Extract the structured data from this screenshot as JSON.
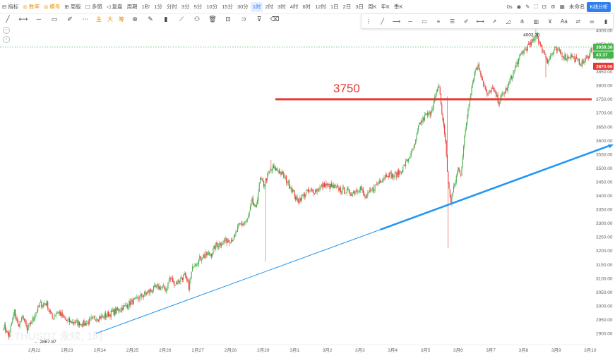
{
  "toolbar": {
    "left_items": [
      {
        "label": "指标",
        "icon": "indicator-icon"
      },
      {
        "label": "数率",
        "icon": "rate-icon",
        "accent": true
      },
      {
        "label": "模号",
        "icon": "signal-icon",
        "accent": true
      },
      {
        "label": "周版",
        "icon": "layout-icon"
      },
      {
        "label": "多窗",
        "icon": "multi-window-icon"
      },
      {
        "label": "复盘",
        "icon": "replay-icon"
      },
      {
        "label": "周期",
        "icon": "period-icon"
      }
    ],
    "intervals": [
      "1秒",
      "1分",
      "分时",
      "3分",
      "5分",
      "10分",
      "15分",
      "30分",
      "1时",
      "2时",
      "3时",
      "4时",
      "6时",
      "12时",
      "1日",
      "2日",
      "3日",
      "周K",
      "年K",
      "季K"
    ],
    "active_interval": "1时",
    "right_items": [
      "0s",
      "未命名"
    ],
    "chart_button": "K线分析"
  },
  "drawing_toolbar": {
    "label_items": [
      "主",
      "大",
      "筹"
    ]
  },
  "chart_data": {
    "type": "candlestick",
    "symbol_watermark": "ETHUSDT 永续, 1时",
    "x_ticks": [
      "2月22",
      "2月23",
      "2月24",
      "2月25",
      "2月26",
      "2月27",
      "2月28",
      "2月29",
      "3月1",
      "3月2",
      "3月3",
      "3月4",
      "3月5",
      "3月6",
      "3月7",
      "3月8",
      "3月9",
      "3月10"
    ],
    "y_ticks": [
      2900,
      2950,
      3000,
      3050,
      3100,
      3150,
      3200,
      3250,
      3300,
      3350,
      3400,
      3450,
      3500,
      3550,
      3600,
      3650,
      3700,
      3750,
      3800,
      3850,
      3900,
      3950,
      4000
    ],
    "ylim": [
      2875,
      4008
    ],
    "up_color": "#4caf50",
    "down_color": "#e53935",
    "anchors": [
      [
        0,
        2930
      ],
      [
        6,
        2890
      ],
      [
        12,
        2980
      ],
      [
        16,
        2930
      ],
      [
        22,
        2960
      ],
      [
        26,
        2910
      ],
      [
        32,
        2950
      ],
      [
        40,
        3005
      ],
      [
        48,
        3010
      ],
      [
        54,
        2955
      ],
      [
        60,
        2980
      ],
      [
        70,
        2945
      ],
      [
        80,
        2940
      ],
      [
        90,
        2935
      ],
      [
        100,
        2955
      ],
      [
        110,
        2960
      ],
      [
        120,
        2975
      ],
      [
        130,
        2990
      ],
      [
        140,
        3010
      ],
      [
        150,
        3030
      ],
      [
        160,
        3050
      ],
      [
        170,
        3070
      ],
      [
        180,
        3060
      ],
      [
        184,
        3100
      ],
      [
        190,
        3080
      ],
      [
        200,
        3110
      ],
      [
        205,
        3070
      ],
      [
        210,
        3150
      ],
      [
        220,
        3180
      ],
      [
        230,
        3190
      ],
      [
        235,
        3220
      ],
      [
        245,
        3235
      ],
      [
        255,
        3245
      ],
      [
        260,
        3290
      ],
      [
        270,
        3310
      ],
      [
        275,
        3380
      ],
      [
        279,
        3350
      ],
      [
        284,
        3460
      ],
      [
        288,
        3440
      ],
      [
        293,
        3480
      ],
      [
        298,
        3500
      ],
      [
        305,
        3490
      ],
      [
        310,
        3470
      ],
      [
        318,
        3430
      ],
      [
        325,
        3380
      ],
      [
        335,
        3410
      ],
      [
        345,
        3420
      ],
      [
        355,
        3440
      ],
      [
        365,
        3430
      ],
      [
        375,
        3420
      ],
      [
        385,
        3410
      ],
      [
        395,
        3430
      ],
      [
        400,
        3390
      ],
      [
        405,
        3410
      ],
      [
        415,
        3450
      ],
      [
        425,
        3480
      ],
      [
        432,
        3470
      ],
      [
        440,
        3490
      ],
      [
        447,
        3530
      ],
      [
        455,
        3580
      ],
      [
        460,
        3660
      ],
      [
        467,
        3690
      ],
      [
        472,
        3700
      ],
      [
        478,
        3760
      ],
      [
        482,
        3800
      ],
      [
        485,
        3700
      ],
      [
        489,
        3600
      ],
      [
        492,
        3440
      ],
      [
        495,
        3380
      ],
      [
        499,
        3440
      ],
      [
        503,
        3500
      ],
      [
        506,
        3480
      ],
      [
        510,
        3610
      ],
      [
        514,
        3720
      ],
      [
        518,
        3800
      ],
      [
        522,
        3860
      ],
      [
        526,
        3870
      ],
      [
        530,
        3820
      ],
      [
        535,
        3760
      ],
      [
        540,
        3790
      ],
      [
        544,
        3770
      ],
      [
        548,
        3740
      ],
      [
        553,
        3770
      ],
      [
        557,
        3790
      ],
      [
        562,
        3830
      ],
      [
        568,
        3880
      ],
      [
        574,
        3920
      ],
      [
        580,
        3940
      ],
      [
        586,
        3960
      ],
      [
        590,
        3990
      ],
      [
        594,
        3940
      ],
      [
        598,
        3920
      ],
      [
        602,
        3890
      ],
      [
        606,
        3910
      ],
      [
        610,
        3930
      ],
      [
        616,
        3920
      ],
      [
        622,
        3900
      ],
      [
        628,
        3910
      ],
      [
        634,
        3890
      ],
      [
        640,
        3880
      ],
      [
        646,
        3900
      ],
      [
        650,
        3930
      ]
    ],
    "wicks": [
      {
        "i": 290,
        "low": 3160
      },
      {
        "i": 296,
        "high": 3530
      },
      {
        "i": 492,
        "low": 3210
      },
      {
        "i": 491,
        "high": 3760
      },
      {
        "i": 589,
        "high": 4003.33
      },
      {
        "i": 600,
        "low": 3830
      }
    ],
    "high_label": "4003.33",
    "low_label": "2867.87",
    "last_price": "3939.36",
    "countdown": "43:37",
    "marked_price": "3870.00",
    "annotations": {
      "h_line_label": "3750",
      "h_line_value": 3750,
      "trend_color": "#2196f3",
      "trend_start": {
        "date": "2月24",
        "price": 2900
      },
      "trend_end": {
        "date": "3月10",
        "price": 3590
      }
    }
  }
}
